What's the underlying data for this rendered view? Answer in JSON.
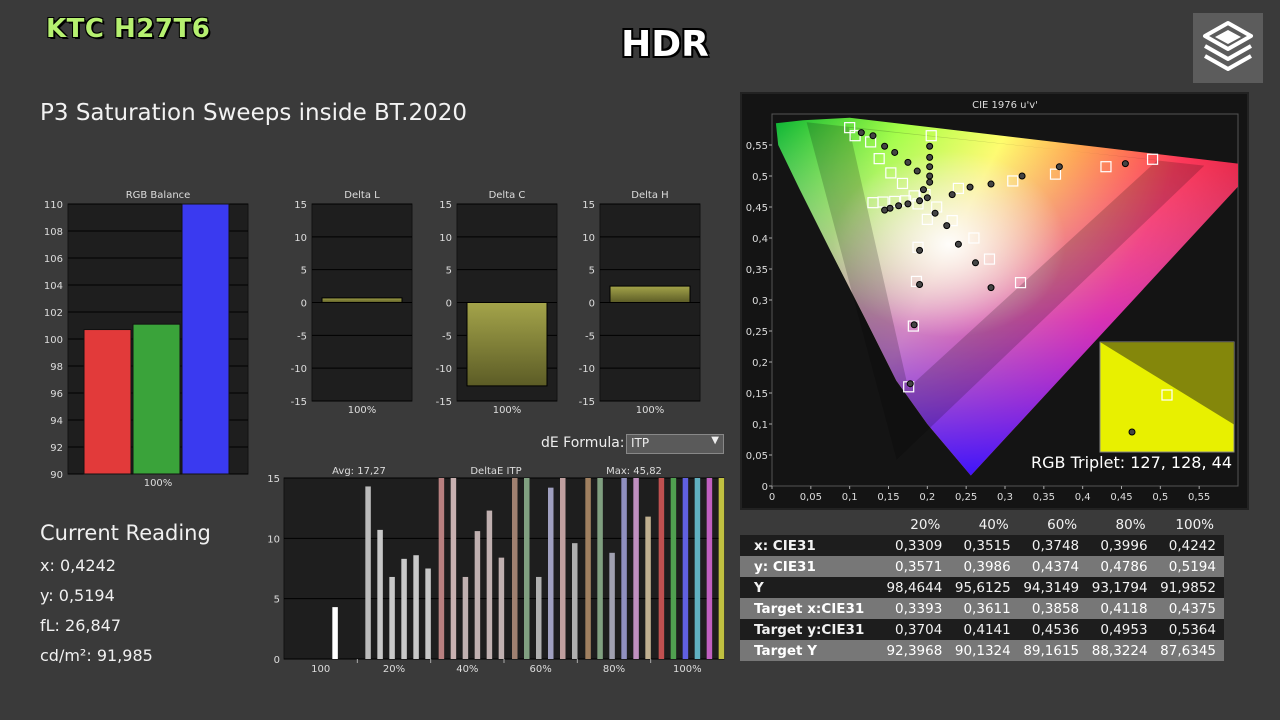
{
  "brand": "KTC H27T6",
  "badge": "HDR",
  "page_title": "P3 Saturation Sweeps inside BT.2020",
  "current_reading": {
    "title": "Current Reading",
    "x": "x: 0,4242",
    "y": "y: 0,5194",
    "fl": "fL: 26,847",
    "cdm2": "cd/m²: 91,985"
  },
  "de_formula": {
    "label": "dE Formula:",
    "value": "ITP"
  },
  "rgb_triplet": "RGB Triplet: 127, 128, 44",
  "table": {
    "headers": [
      "",
      "20%",
      "40%",
      "60%",
      "80%",
      "100%"
    ],
    "rows": [
      {
        "label": "x: CIE31",
        "values": [
          "0,3309",
          "0,3515",
          "0,3748",
          "0,3996",
          "0,4242"
        ],
        "style": "dark"
      },
      {
        "label": "y: CIE31",
        "values": [
          "0,3571",
          "0,3986",
          "0,4374",
          "0,4786",
          "0,5194"
        ],
        "style": "light"
      },
      {
        "label": "Y",
        "values": [
          "98,4644",
          "95,6125",
          "94,3149",
          "93,1794",
          "91,9852"
        ],
        "style": "dark"
      },
      {
        "label": "Target x:CIE31",
        "values": [
          "0,3393",
          "0,3611",
          "0,3858",
          "0,4118",
          "0,4375"
        ],
        "style": "light"
      },
      {
        "label": "Target y:CIE31",
        "values": [
          "0,3704",
          "0,4141",
          "0,4536",
          "0,4953",
          "0,5364"
        ],
        "style": "dark"
      },
      {
        "label": "Target Y",
        "values": [
          "92,3968",
          "90,1324",
          "89,1615",
          "88,3224",
          "87,6345"
        ],
        "style": "light"
      }
    ]
  },
  "chart_data": [
    {
      "type": "bar",
      "title": "RGB Balance",
      "categories": [
        "100%"
      ],
      "series": [
        {
          "name": "R",
          "values": [
            100.7
          ],
          "color": "#e23a3a"
        },
        {
          "name": "G",
          "values": [
            101.1
          ],
          "color": "#3aa33a"
        },
        {
          "name": "B",
          "values": [
            110
          ],
          "color": "#3a3af0"
        }
      ],
      "ylim": [
        90,
        110
      ],
      "yticks": [
        "90",
        "92",
        "94",
        "96",
        "98",
        "100",
        "102",
        "104",
        "106",
        "108",
        "110"
      ]
    },
    {
      "type": "bar",
      "title": "Delta L",
      "categories": [
        "100%"
      ],
      "values": [
        0.7
      ],
      "ylim": [
        -15,
        15
      ],
      "yticks": [
        "-15",
        "-10",
        "-5",
        "0",
        "5",
        "10",
        "15"
      ]
    },
    {
      "type": "bar",
      "title": "Delta C",
      "categories": [
        "100%"
      ],
      "values": [
        -12.7
      ],
      "ylim": [
        -15,
        15
      ],
      "yticks": [
        "-15",
        "-10",
        "-5",
        "0",
        "5",
        "10",
        "15"
      ]
    },
    {
      "type": "bar",
      "title": "Delta H",
      "categories": [
        "100%"
      ],
      "values": [
        2.5
      ],
      "ylim": [
        -15,
        15
      ],
      "yticks": [
        "-15",
        "-10",
        "-5",
        "0",
        "5",
        "10",
        "15"
      ]
    },
    {
      "type": "bar",
      "title": "DeltaE ITP",
      "avg_label": "Avg: 17,27",
      "max_label": "Max: 45,82",
      "ylim": [
        0,
        15
      ],
      "yticks": [
        "0",
        "5",
        "10",
        "15"
      ],
      "categories": [
        "100",
        "20%",
        "40%",
        "60%",
        "80%",
        "100%"
      ],
      "groups": [
        {
          "category": "100",
          "bars": [
            {
              "v": 4.3,
              "c": "#ffffff"
            }
          ]
        },
        {
          "category": "20%",
          "bars": [
            {
              "v": 14.3,
              "c": "#bbbbbb"
            },
            {
              "v": 10.7,
              "c": "#c8c8c8"
            },
            {
              "v": 6.8,
              "c": "#c8c8c8"
            },
            {
              "v": 8.3,
              "c": "#c8c8c8"
            },
            {
              "v": 8.6,
              "c": "#c8c8c8"
            },
            {
              "v": 7.5,
              "c": "#c8c8c8"
            }
          ]
        },
        {
          "category": "40%",
          "bars": [
            {
              "v": 15,
              "c": "#b88080"
            },
            {
              "v": 15,
              "c": "#c8b0b0"
            },
            {
              "v": 6.8,
              "c": "#c0b0b0"
            },
            {
              "v": 10.6,
              "c": "#c0b0b0"
            },
            {
              "v": 12.3,
              "c": "#c0b0b0"
            },
            {
              "v": 8.4,
              "c": "#c0b0b0"
            }
          ]
        },
        {
          "category": "60%",
          "bars": [
            {
              "v": 15,
              "c": "#a08070"
            },
            {
              "v": 15,
              "c": "#80a080"
            },
            {
              "v": 6.8,
              "c": "#b0b0b0"
            },
            {
              "v": 14.2,
              "c": "#a0a0c0"
            },
            {
              "v": 15,
              "c": "#c0a0a0"
            },
            {
              "v": 9.6,
              "c": "#b0b0b0"
            }
          ]
        },
        {
          "category": "80%",
          "bars": [
            {
              "v": 15,
              "c": "#a08060"
            },
            {
              "v": 15,
              "c": "#80a080"
            },
            {
              "v": 8.8,
              "c": "#a0a0b0"
            },
            {
              "v": 15,
              "c": "#9090c0"
            },
            {
              "v": 15,
              "c": "#c090c0"
            },
            {
              "v": 11.8,
              "c": "#c0b090"
            }
          ]
        },
        {
          "category": "100%",
          "bars": [
            {
              "v": 15,
              "c": "#c05050"
            },
            {
              "v": 15,
              "c": "#50a050"
            },
            {
              "v": 15,
              "c": "#6060e0"
            },
            {
              "v": 15,
              "c": "#60b0c0"
            },
            {
              "v": 15,
              "c": "#c060c0"
            },
            {
              "v": 15,
              "c": "#c0c040"
            }
          ]
        }
      ]
    },
    {
      "type": "scatter",
      "title": "CIE 1976 u'v'",
      "xlim": [
        0,
        0.6
      ],
      "ylim": [
        0,
        0.6
      ],
      "xticks": [
        "0",
        "0,05",
        "0,1",
        "0,15",
        "0,2",
        "0,25",
        "0,3",
        "0,35",
        "0,4",
        "0,45",
        "0,5",
        "0,55"
      ],
      "yticks": [
        "0",
        "0,05",
        "0,1",
        "0,15",
        "0,2",
        "0,25",
        "0,3",
        "0,35",
        "0,4",
        "0,45",
        "0,5",
        "0,55"
      ],
      "targets": [
        [
          0.1,
          0.578
        ],
        [
          0.107,
          0.565
        ],
        [
          0.127,
          0.555
        ],
        [
          0.138,
          0.528
        ],
        [
          0.153,
          0.505
        ],
        [
          0.168,
          0.488
        ],
        [
          0.183,
          0.468
        ],
        [
          0.197,
          0.47
        ],
        [
          0.205,
          0.565
        ],
        [
          0.188,
          0.455
        ],
        [
          0.212,
          0.45
        ],
        [
          0.232,
          0.428
        ],
        [
          0.26,
          0.4
        ],
        [
          0.28,
          0.366
        ],
        [
          0.32,
          0.328
        ],
        [
          0.188,
          0.385
        ],
        [
          0.186,
          0.33
        ],
        [
          0.182,
          0.258
        ],
        [
          0.176,
          0.16
        ],
        [
          0.24,
          0.48
        ],
        [
          0.31,
          0.492
        ],
        [
          0.365,
          0.503
        ],
        [
          0.43,
          0.515
        ],
        [
          0.49,
          0.527
        ],
        [
          0.13,
          0.457
        ],
        [
          0.143,
          0.458
        ],
        [
          0.158,
          0.459
        ],
        [
          0.172,
          0.46
        ],
        [
          0.2,
          0.43
        ]
      ],
      "measured": [
        [
          0.115,
          0.57
        ],
        [
          0.13,
          0.565
        ],
        [
          0.145,
          0.548
        ],
        [
          0.158,
          0.538
        ],
        [
          0.175,
          0.522
        ],
        [
          0.187,
          0.508
        ],
        [
          0.195,
          0.478
        ],
        [
          0.203,
          0.548
        ],
        [
          0.203,
          0.53
        ],
        [
          0.203,
          0.515
        ],
        [
          0.203,
          0.5
        ],
        [
          0.203,
          0.49
        ],
        [
          0.21,
          0.44
        ],
        [
          0.225,
          0.42
        ],
        [
          0.24,
          0.39
        ],
        [
          0.262,
          0.36
        ],
        [
          0.282,
          0.32
        ],
        [
          0.19,
          0.38
        ],
        [
          0.19,
          0.325
        ],
        [
          0.183,
          0.26
        ],
        [
          0.178,
          0.165
        ],
        [
          0.232,
          0.47
        ],
        [
          0.255,
          0.482
        ],
        [
          0.282,
          0.487
        ],
        [
          0.322,
          0.5
        ],
        [
          0.37,
          0.515
        ],
        [
          0.455,
          0.52
        ],
        [
          0.145,
          0.445
        ],
        [
          0.152,
          0.448
        ],
        [
          0.163,
          0.452
        ],
        [
          0.175,
          0.455
        ],
        [
          0.19,
          0.46
        ],
        [
          0.2,
          0.465
        ]
      ],
      "inset_label": ""
    }
  ]
}
